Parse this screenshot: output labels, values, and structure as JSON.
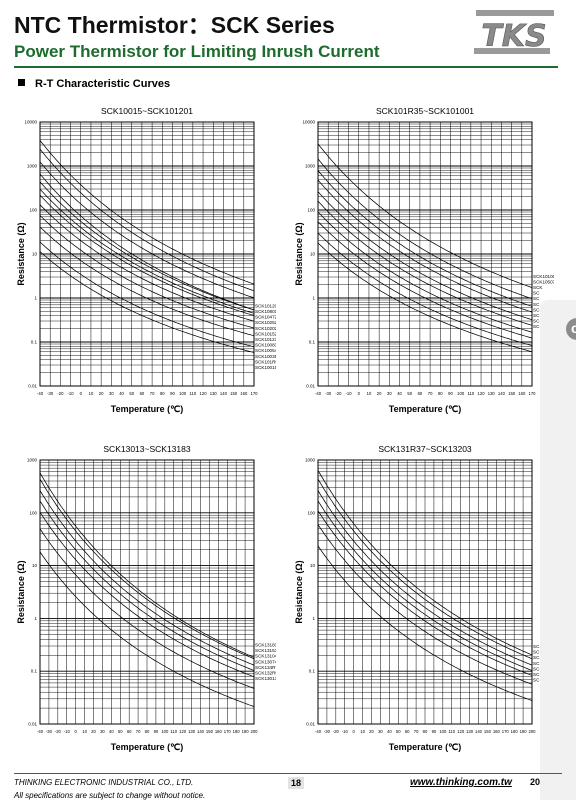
{
  "header": {
    "title": "NTC Thermistor：SCK Series",
    "subtitle": "Power Thermistor for Limiting Inrush Current",
    "logo_text": "TKS"
  },
  "section": {
    "title": "R-T Characteristic Curves"
  },
  "footer": {
    "company": "THINKING ELECTRONIC INDUSTRIAL CO., LTD.",
    "notice": "All specifications are subject to change without notice.",
    "page": "18",
    "website": "www.thinking.com.tw",
    "year": "20"
  },
  "colors": {
    "brand_green": "#1e6b2e",
    "curve": "#000000",
    "grid": "#000000"
  },
  "chart_data": [
    {
      "type": "line",
      "title": "SCK10015~SCK101201",
      "xlabel": "Temperature (℃)",
      "ylabel": "Resistance (Ω)",
      "yscale": "log",
      "xlim": [
        -40,
        170
      ],
      "ylim": [
        0.01,
        10000
      ],
      "xticks": [
        -40,
        -30,
        -20,
        -10,
        0,
        10,
        20,
        30,
        40,
        50,
        60,
        70,
        80,
        90,
        100,
        110,
        120,
        130,
        140,
        150,
        160,
        170
      ],
      "yticks": [
        0.01,
        0.1,
        1,
        10,
        100,
        1000,
        10000
      ],
      "ytick_labels": [
        "0.01",
        "0.1",
        "1",
        "10",
        "100",
        "1000",
        "10000"
      ],
      "series": [
        {
          "name": "SCK101201",
          "r25": 120,
          "b": 3700,
          "end": 0.68
        },
        {
          "name": "SCK10801",
          "r25": 80,
          "b": 3650,
          "end": 0.55
        },
        {
          "name": "SCK10472",
          "r25": 47,
          "b": 3500,
          "end": 0.5
        },
        {
          "name": "SCK10252",
          "r25": 25,
          "b": 3500,
          "end": 0.42
        },
        {
          "name": "SCK10202",
          "r25": 20,
          "b": 3300,
          "end": 0.37
        },
        {
          "name": "SCK10152X",
          "r25": 15,
          "b": 3200,
          "end": 0.32
        },
        {
          "name": "SCK10123",
          "r25": 12,
          "b": 3100,
          "end": 0.28
        },
        {
          "name": "SCK10083",
          "r25": 8,
          "b": 3000,
          "end": 0.24
        },
        {
          "name": "SCK10054",
          "r25": 5,
          "b": 2900,
          "end": 0.2
        },
        {
          "name": "SCK10035",
          "r25": 3,
          "b": 2800,
          "end": 0.16
        },
        {
          "name": "SCK101R55",
          "r25": 1.5,
          "b": 2700,
          "end": 0.13
        },
        {
          "name": "SCK10015",
          "r25": 1,
          "b": 2600,
          "end": 0.1
        }
      ]
    },
    {
      "type": "line",
      "title": "SCK101R35~SCK101001",
      "xlabel": "Temperature (℃)",
      "ylabel": "Resistance (Ω)",
      "yscale": "log",
      "xlim": [
        -40,
        170
      ],
      "ylim": [
        0.01,
        10000
      ],
      "xticks": [
        -40,
        -30,
        -20,
        -10,
        0,
        10,
        20,
        30,
        40,
        50,
        60,
        70,
        80,
        90,
        100,
        110,
        120,
        130,
        140,
        150,
        160,
        170
      ],
      "yticks": [
        0.01,
        0.1,
        1,
        10,
        100,
        1000,
        10000
      ],
      "ytick_labels": [
        "0.01",
        "0.1",
        "1",
        "10",
        "100",
        "1000",
        "10000"
      ],
      "series": [
        {
          "name": "SCK101001",
          "r25": 100,
          "b": 3700,
          "end": 3.2
        },
        {
          "name": "SCK10507",
          "r25": 50,
          "b": 3600,
          "end": 2.2
        },
        {
          "name": "SCK",
          "r25": 30,
          "b": 3500,
          "end": 1.5
        },
        {
          "name": "SC",
          "r25": 20,
          "b": 3400,
          "end": 1.0
        },
        {
          "name": "SC",
          "r25": 12,
          "b": 3300,
          "end": 0.75
        },
        {
          "name": "SC",
          "r25": 8,
          "b": 3200,
          "end": 0.58
        },
        {
          "name": "SC",
          "r25": 5,
          "b": 3100,
          "end": 0.46
        },
        {
          "name": "SC",
          "r25": 3.3,
          "b": 3000,
          "end": 0.37
        },
        {
          "name": "SC",
          "r25": 2,
          "b": 2900,
          "end": 0.3
        },
        {
          "name": "SC",
          "r25": 1.3,
          "b": 2800,
          "end": 0.24
        }
      ]
    },
    {
      "type": "line",
      "title": "SCK13013~SCK13183",
      "xlabel": "Temperature (℃)",
      "ylabel": "Resistance (Ω)",
      "yscale": "log",
      "xlim": [
        -40,
        200
      ],
      "ylim": [
        0.01,
        1000
      ],
      "xticks": [
        -40,
        -30,
        -20,
        -10,
        0,
        10,
        20,
        30,
        40,
        50,
        60,
        70,
        80,
        90,
        100,
        110,
        120,
        130,
        140,
        150,
        160,
        170,
        180,
        190,
        200
      ],
      "yticks": [
        0.01,
        0.1,
        1,
        10,
        100,
        1000
      ],
      "ytick_labels": [
        "0.01",
        "0.1",
        "1",
        "10",
        "100",
        "1000"
      ],
      "series": [
        {
          "name": "SCK13183",
          "r25": 18,
          "b": 3700,
          "end": 0.32
        },
        {
          "name": "SCK13153",
          "r25": 15,
          "b": 3600,
          "end": 0.23
        },
        {
          "name": "SCK13104",
          "r25": 10,
          "b": 3500,
          "end": 0.15
        },
        {
          "name": "SCK13074",
          "r25": 7,
          "b": 3400,
          "end": 0.11
        },
        {
          "name": "SCK134R74",
          "r25": 4.7,
          "b": 3300,
          "end": 0.08
        },
        {
          "name": "SCK132R56",
          "r25": 2.5,
          "b": 3200,
          "end": 0.057
        },
        {
          "name": "SCK13013",
          "r25": 1,
          "b": 3100,
          "end": 0.045
        }
      ]
    },
    {
      "type": "line",
      "title": "SCK131R37~SCK13203",
      "xlabel": "Temperature (℃)",
      "ylabel": "Resistance (Ω)",
      "yscale": "log",
      "xlim": [
        -40,
        200
      ],
      "ylim": [
        0.01,
        1000
      ],
      "xticks": [
        -40,
        -30,
        -20,
        -10,
        0,
        10,
        20,
        30,
        40,
        50,
        60,
        70,
        80,
        90,
        100,
        110,
        120,
        130,
        140,
        150,
        160,
        170,
        180,
        190,
        200
      ],
      "yticks": [
        0.01,
        0.1,
        1,
        10,
        100,
        1000
      ],
      "ytick_labels": [
        "0.01",
        "0.1",
        "1",
        "10",
        "100",
        "1000"
      ],
      "series": [
        {
          "name": "SC",
          "r25": 20,
          "b": 3700,
          "end": 0.3
        },
        {
          "name": "SC",
          "r25": 15,
          "b": 3600,
          "end": 0.24
        },
        {
          "name": "SC",
          "r25": 10,
          "b": 3500,
          "end": 0.19
        },
        {
          "name": "SC",
          "r25": 7,
          "b": 3400,
          "end": 0.15
        },
        {
          "name": "SC",
          "r25": 5,
          "b": 3300,
          "end": 0.11
        },
        {
          "name": "SC",
          "r25": 3,
          "b": 3200,
          "end": 0.08
        },
        {
          "name": "SC",
          "r25": 1.3,
          "b": 3100,
          "end": 0.056
        }
      ]
    }
  ]
}
